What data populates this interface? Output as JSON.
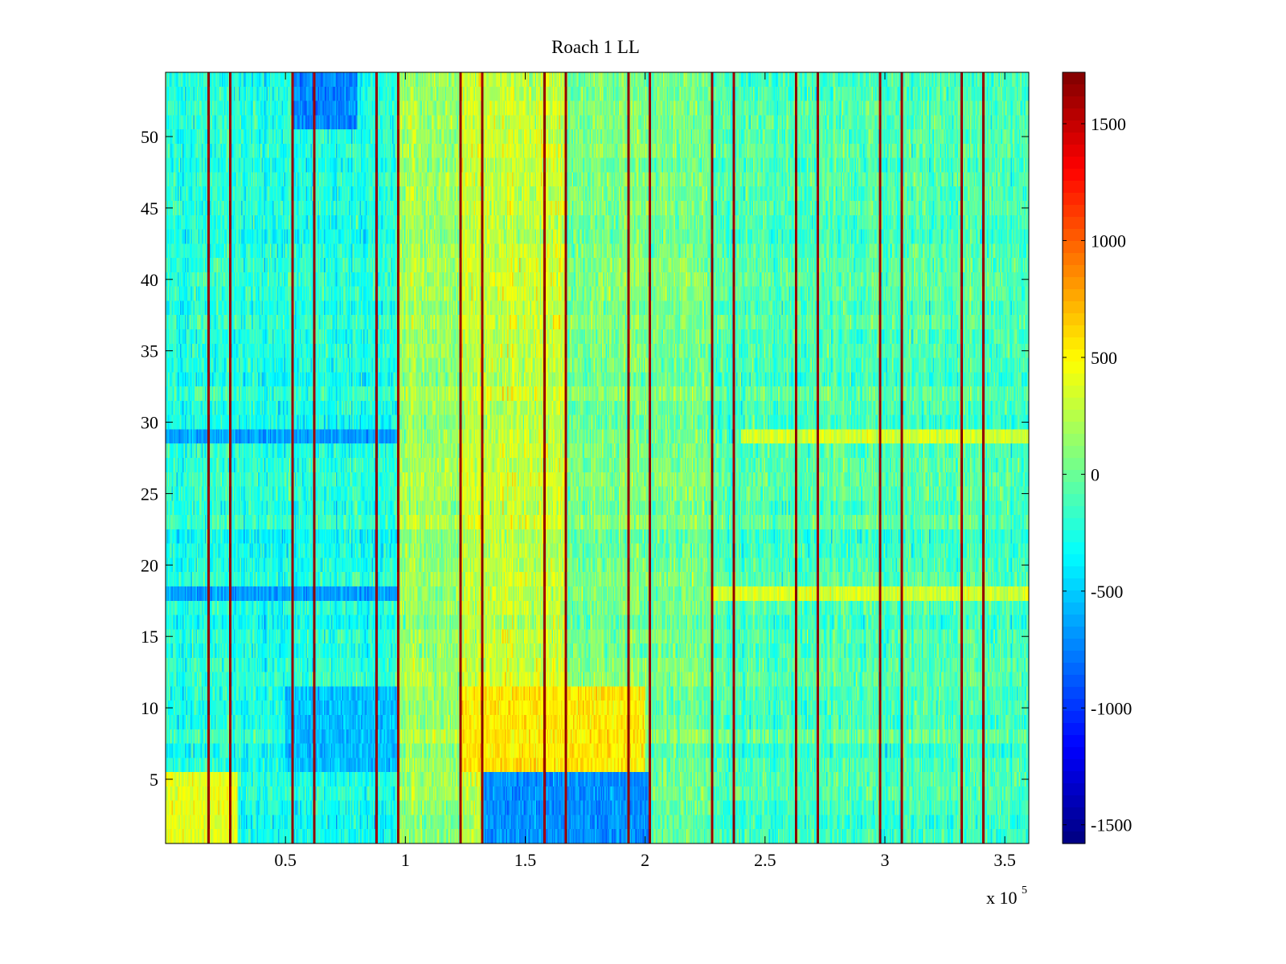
{
  "chart_data": {
    "type": "heatmap",
    "title": "Roach 1 LL",
    "xlabel": "",
    "ylabel": "",
    "x_multiplier_label": "x 10",
    "x_multiplier_exponent": "5",
    "xlim": [
      0,
      360000
    ],
    "ylim": [
      0.5,
      54.5
    ],
    "n_rows": 54,
    "n_columns": 720,
    "x_ticks": [
      {
        "value": 50000,
        "label": "0.5"
      },
      {
        "value": 100000,
        "label": "1"
      },
      {
        "value": 150000,
        "label": "1.5"
      },
      {
        "value": 200000,
        "label": "2"
      },
      {
        "value": 250000,
        "label": "2.5"
      },
      {
        "value": 300000,
        "label": "3"
      },
      {
        "value": 350000,
        "label": "3.5"
      }
    ],
    "y_ticks": [
      {
        "value": 5,
        "label": "5"
      },
      {
        "value": 10,
        "label": "10"
      },
      {
        "value": 15,
        "label": "15"
      },
      {
        "value": 20,
        "label": "20"
      },
      {
        "value": 25,
        "label": "25"
      },
      {
        "value": 30,
        "label": "30"
      },
      {
        "value": 35,
        "label": "35"
      },
      {
        "value": 40,
        "label": "40"
      },
      {
        "value": 45,
        "label": "45"
      },
      {
        "value": 50,
        "label": "50"
      }
    ],
    "colorbar": {
      "colormap": "jet",
      "range": [
        -1580,
        1720
      ],
      "ticks": [
        {
          "value": 1500,
          "label": "1500"
        },
        {
          "value": 1000,
          "label": "1000"
        },
        {
          "value": 500,
          "label": "500"
        },
        {
          "value": 0,
          "label": "0"
        },
        {
          "value": -500,
          "label": "-500"
        },
        {
          "value": -1000,
          "label": "-1000"
        },
        {
          "value": -1500,
          "label": "-1500"
        }
      ]
    },
    "spike_columns_x": [
      18000,
      27000,
      53000,
      62000,
      88000,
      97000,
      123000,
      132000,
      158000,
      167000,
      193000,
      202000,
      228000,
      237000,
      263000,
      272000,
      298000,
      307000,
      332000,
      341000
    ],
    "spike_value": 1650,
    "segments": [
      {
        "x_range": [
          0,
          97000
        ],
        "mean_value": -250
      },
      {
        "x_range": [
          97000,
          123000
        ],
        "mean_value": 150
      },
      {
        "x_range": [
          123000,
          167000
        ],
        "mean_value": 300
      },
      {
        "x_range": [
          167000,
          228000
        ],
        "mean_value": 50
      },
      {
        "x_range": [
          228000,
          360000
        ],
        "mean_value": -100
      }
    ],
    "row_features": [
      {
        "rows": [
          29,
          29
        ],
        "x_range": [
          0,
          97000
        ],
        "mean_value": -650
      },
      {
        "rows": [
          29,
          29
        ],
        "x_range": [
          240000,
          360000
        ],
        "mean_value": 350
      },
      {
        "rows": [
          18,
          18
        ],
        "x_range": [
          0,
          97000
        ],
        "mean_value": -650
      },
      {
        "rows": [
          18,
          18
        ],
        "x_range": [
          228000,
          360000
        ],
        "mean_value": 350
      },
      {
        "rows": [
          6,
          11
        ],
        "x_range": [
          123000,
          200000
        ],
        "mean_value": 550
      },
      {
        "rows": [
          1,
          5
        ],
        "x_range": [
          132000,
          202000
        ],
        "mean_value": -700
      },
      {
        "rows": [
          1,
          5
        ],
        "x_range": [
          0,
          30000
        ],
        "mean_value": 400
      },
      {
        "rows": [
          6,
          11
        ],
        "x_range": [
          50000,
          97000
        ],
        "mean_value": -550
      },
      {
        "rows": [
          51,
          54
        ],
        "x_range": [
          53000,
          80000
        ],
        "mean_value": -750
      }
    ]
  }
}
